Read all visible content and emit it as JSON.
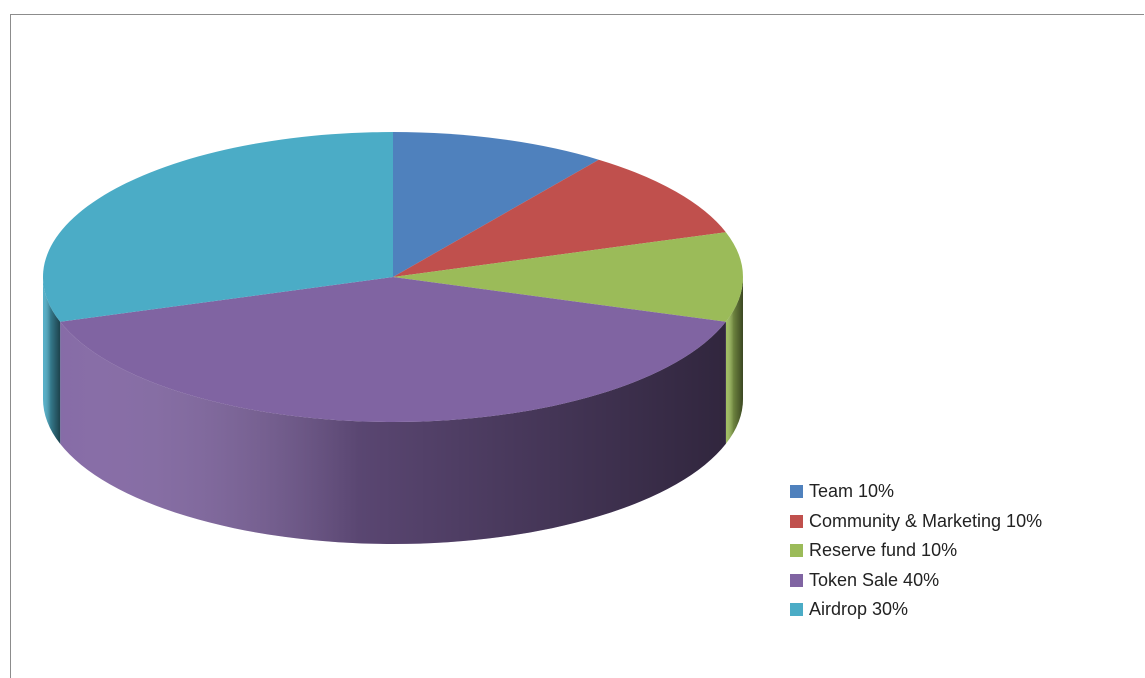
{
  "chart_data": {
    "type": "pie",
    "title": "",
    "legend_position": "bottom-right",
    "slices": [
      {
        "label": "Team 10%",
        "value": 10,
        "color": "#4f81bd"
      },
      {
        "label": "Community & Marketing 10%",
        "value": 10,
        "color": "#c0504d"
      },
      {
        "label": "Reserve fund 10%",
        "value": 10,
        "color": "#9bbb59"
      },
      {
        "label": "Token Sale 40%",
        "value": 40,
        "color": "#8064a2"
      },
      {
        "label": "Airdrop 30%",
        "value": 30,
        "color": "#4bacc6"
      }
    ]
  }
}
